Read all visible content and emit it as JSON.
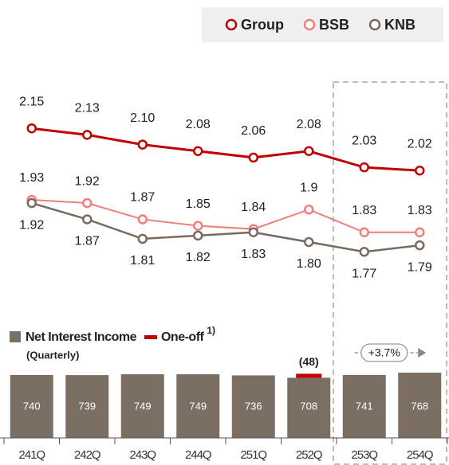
{
  "chart_data": [
    {
      "type": "line",
      "series": [
        {
          "name": "Group",
          "color": "#c00000",
          "values": [
            2.15,
            2.13,
            2.1,
            2.08,
            2.06,
            2.08,
            2.03,
            2.02
          ],
          "value_labels": [
            "2.15",
            "2.13",
            "2.10",
            "2.08",
            "2.06",
            "2.08",
            "2.03",
            "2.02"
          ]
        },
        {
          "name": "BSB",
          "color": "#f07f7a",
          "values": [
            1.93,
            1.92,
            1.87,
            1.85,
            1.84,
            1.9,
            1.83,
            1.83
          ]
        },
        {
          "name": "KNB",
          "color": "#786a5f",
          "values": [
            1.92,
            1.87,
            1.81,
            1.82,
            1.83,
            1.8,
            1.77,
            1.79
          ],
          "value_labels": [
            "1.92",
            "1.87",
            "1.81",
            "1.82",
            "1.83",
            "1.80",
            "1.77",
            "1.79"
          ]
        }
      ],
      "ylim": [
        1.6,
        2.3
      ],
      "legend": "top-right"
    },
    {
      "type": "bar",
      "categories": [
        "241Q",
        "242Q",
        "243Q",
        "244Q",
        "251Q",
        "252Q",
        "253Q",
        "254Q"
      ],
      "series": [
        {
          "name": "Net Interest Income",
          "color": "#7b6e63",
          "values": [
            740,
            739,
            749,
            749,
            736,
            708,
            741,
            768
          ]
        },
        {
          "name": "One-off",
          "footnote": "1)",
          "color": "#c00000",
          "values": [
            null,
            null,
            null,
            null,
            null,
            48,
            null,
            null
          ],
          "value_labels": [
            null,
            null,
            null,
            null,
            null,
            "(48)",
            null,
            null
          ]
        }
      ],
      "legend_note": "(Quarterly)",
      "annotations": [
        {
          "text": "+3.7%"
        }
      ],
      "ylim": [
        0,
        800
      ]
    }
  ]
}
